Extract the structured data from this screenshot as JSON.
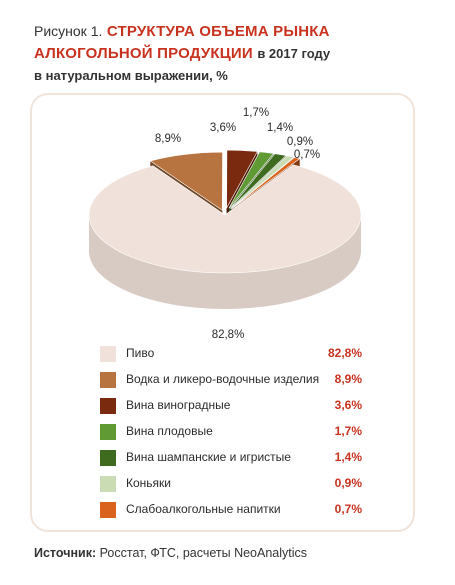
{
  "title": {
    "figure_label": "Рисунок 1.",
    "main_line1": "СТРУКТУРА ОБЪЕМА РЫНКА",
    "main_line2": "АЛКОГОЛЬНОЙ ПРОДУКЦИИ",
    "suffix": "в 2017 году",
    "subtitle": "в натуральном выражении, %"
  },
  "source": {
    "label": "Источник:",
    "text": "Росстат, ФТС, расчеты NeoAnalytics"
  },
  "chart_data": {
    "type": "pie",
    "title": "СТРУКТУРА ОБЪЕМА РЫНКА АЛКОГОЛЬНОЙ ПРОДУКЦИИ в 2017 году",
    "subtitle": "в натуральном выражении, %",
    "legend_position": "bottom",
    "three_d": true,
    "slices": [
      {
        "name": "Пиво",
        "value": 82.8,
        "label": "82,8%",
        "color": "#f0e2da"
      },
      {
        "name": "Водка и ликеро-водочные изделия",
        "value": 8.9,
        "label": "8,9%",
        "color": "#b87440"
      },
      {
        "name": "Вина виноградные",
        "value": 3.6,
        "label": "3,6%",
        "color": "#7a2a0e"
      },
      {
        "name": "Вина плодовые",
        "value": 1.7,
        "label": "1,7%",
        "color": "#5f9a35"
      },
      {
        "name": "Вина шампанские и игристые",
        "value": 1.4,
        "label": "1,4%",
        "color": "#3e6b1e"
      },
      {
        "name": "Коньяки",
        "value": 0.9,
        "label": "0,9%",
        "color": "#c9dcb4"
      },
      {
        "name": "Слабоалкогольные напитки",
        "value": 0.7,
        "label": "0,7%",
        "color": "#d9621c"
      }
    ]
  }
}
